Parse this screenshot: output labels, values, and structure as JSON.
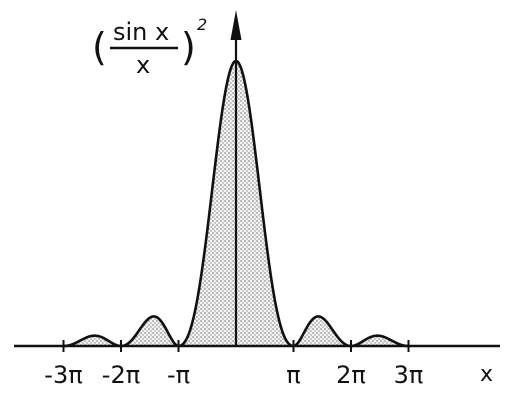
{
  "chart_data": {
    "type": "area",
    "function": "(sin x / x)^2",
    "ylabel": {
      "open_paren": "(",
      "numerator": "sin x",
      "denominator": "x",
      "close_paren": ")",
      "exponent": "2"
    },
    "xlabel": "x",
    "x_ticks": [
      {
        "value": -9.424778,
        "label": "-3π"
      },
      {
        "value": -6.283185,
        "label": "-2π"
      },
      {
        "value": -3.141593,
        "label": "-π"
      },
      {
        "value": 3.141593,
        "label": "π"
      },
      {
        "value": 6.283185,
        "label": "2π"
      },
      {
        "value": 9.424778,
        "label": "3π"
      }
    ],
    "xlim": [
      -11.7,
      13.0
    ],
    "ylim": [
      0,
      1.0
    ],
    "peak": {
      "x": 0,
      "y": 1.0
    },
    "fill": "dotted",
    "grid": false,
    "legend": "none",
    "colors": {
      "line": "#111111",
      "fill_base": "#f2f2f2",
      "fill_dots": "#666666"
    }
  }
}
